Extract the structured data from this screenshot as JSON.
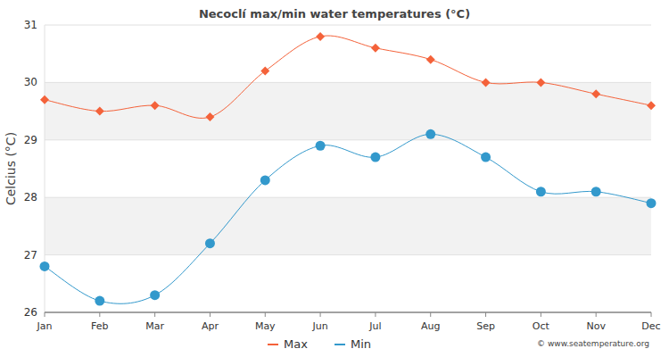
{
  "chart_data": {
    "type": "line",
    "title": "Necoclí max/min water temperatures (°C)",
    "y_label": "Celcius (°C)",
    "annotations": [
      "© www.seatemperature.org"
    ],
    "categories": [
      "Jan",
      "Feb",
      "Mar",
      "Apr",
      "May",
      "Jun",
      "Jul",
      "Aug",
      "Sep",
      "Oct",
      "Nov",
      "Dec"
    ],
    "series": [
      {
        "name": "Max",
        "color": "#f4623a",
        "marker": "diamond",
        "values": [
          29.7,
          29.5,
          29.6,
          29.4,
          30.2,
          30.8,
          30.6,
          30.4,
          30.0,
          30.0,
          29.8,
          29.6
        ]
      },
      {
        "name": "Min",
        "color": "#3399cc",
        "marker": "circle",
        "values": [
          26.8,
          26.2,
          26.3,
          27.2,
          28.3,
          28.9,
          28.7,
          29.1,
          28.7,
          28.1,
          28.1,
          27.9
        ]
      }
    ],
    "ylim": [
      26,
      31
    ],
    "yticks": [
      26,
      27,
      28,
      29,
      30,
      31
    ],
    "grid": true,
    "legend": "bottom"
  }
}
